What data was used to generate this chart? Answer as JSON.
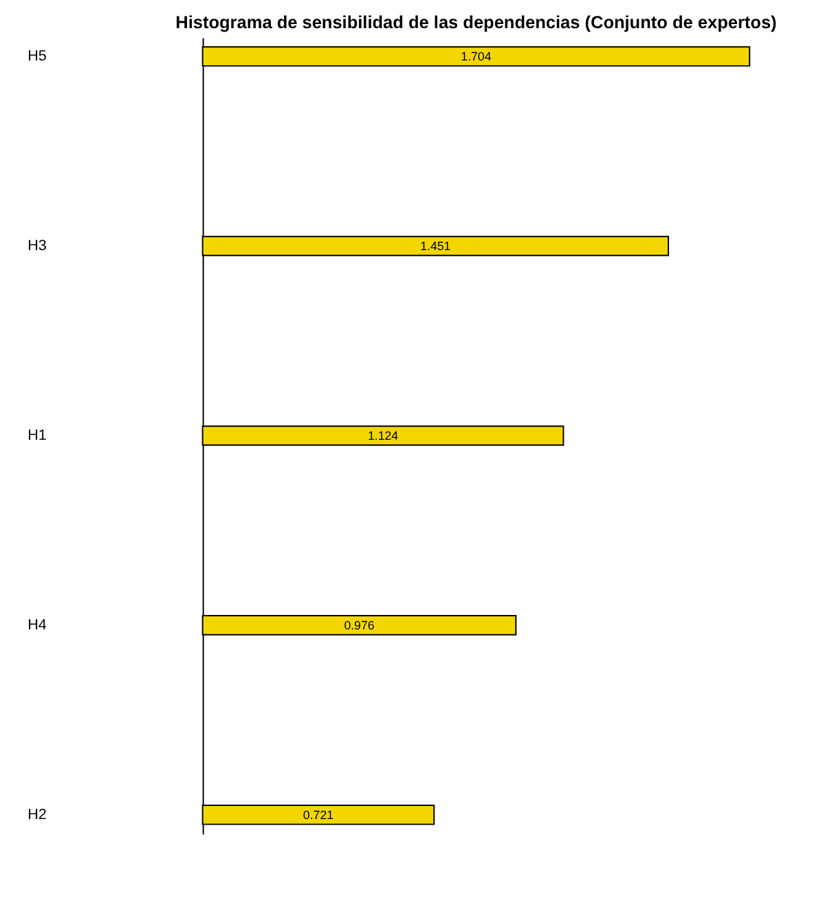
{
  "chart_data": {
    "type": "bar",
    "orientation": "horizontal",
    "title": "Histograma de sensibilidad de las dependencias (Conjunto de expertos)",
    "categories": [
      "H5",
      "H3",
      "H1",
      "H4",
      "H2"
    ],
    "values": [
      1.704,
      1.451,
      1.124,
      0.976,
      0.721
    ],
    "color": "#f2d600",
    "data_labels": true,
    "grid": false
  }
}
